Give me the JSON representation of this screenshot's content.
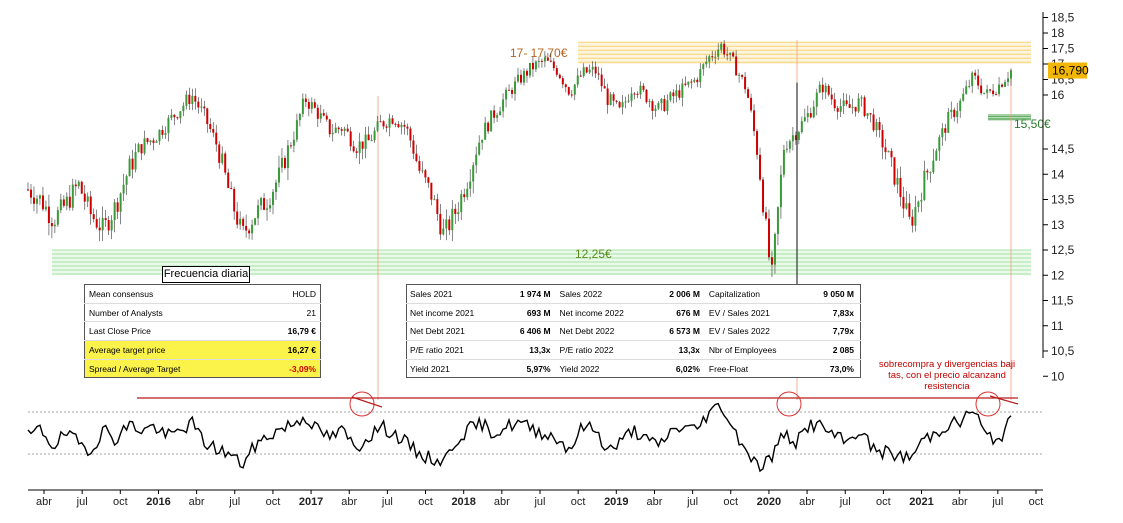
{
  "chart_data": {
    "type": "line",
    "price_axis": {
      "ticks": [
        10,
        10.5,
        11,
        11.5,
        12,
        12.5,
        13,
        13.5,
        14,
        14.5,
        16,
        16.5,
        17,
        17.5,
        18,
        18.5
      ]
    },
    "x_axis_labels": [
      {
        "t": "abr",
        "year": false
      },
      {
        "t": "jul",
        "year": false
      },
      {
        "t": "oct",
        "year": false
      },
      {
        "t": "2016",
        "year": true
      },
      {
        "t": "abr",
        "year": false
      },
      {
        "t": "jul",
        "year": false
      },
      {
        "t": "oct",
        "year": false
      },
      {
        "t": "2017",
        "year": true
      },
      {
        "t": "abr",
        "year": false
      },
      {
        "t": "jul",
        "year": false
      },
      {
        "t": "oct",
        "year": false
      },
      {
        "t": "2018",
        "year": true
      },
      {
        "t": "abr",
        "year": false
      },
      {
        "t": "jul",
        "year": false
      },
      {
        "t": "oct",
        "year": false
      },
      {
        "t": "2019",
        "year": true
      },
      {
        "t": "abr",
        "year": false
      },
      {
        "t": "jul",
        "year": false
      },
      {
        "t": "oct",
        "year": false
      },
      {
        "t": "2020",
        "year": true
      },
      {
        "t": "abr",
        "year": false
      },
      {
        "t": "jul",
        "year": false
      },
      {
        "t": "oct",
        "year": false
      },
      {
        "t": "2021",
        "year": true
      },
      {
        "t": "abr",
        "year": false
      },
      {
        "t": "jul",
        "year": false
      },
      {
        "t": "oct",
        "year": false
      }
    ],
    "price_series_monthly": [
      13.7,
      13.5,
      13.1,
      13.4,
      13.8,
      13.2,
      12.9,
      13.4,
      14.1,
      14.6,
      14.8,
      15.2,
      15.6,
      16.0,
      15.4,
      14.6,
      13.6,
      12.8,
      13.2,
      13.5,
      14.0,
      14.8,
      15.9,
      15.5,
      15.0,
      15.1,
      14.6,
      14.7,
      15.2,
      15.4,
      15.1,
      14.1,
      13.6,
      12.8,
      13.3,
      14.0,
      14.9,
      15.5,
      16.0,
      16.5,
      16.9,
      17.1,
      16.8,
      16.1,
      16.7,
      16.8,
      15.9,
      15.5,
      16.3,
      16.0,
      15.6,
      15.9,
      16.2,
      16.5,
      17.2,
      17.6,
      17.0,
      16.2,
      14.2,
      11.9,
      14.6,
      15.0,
      15.5,
      16.3,
      15.8,
      15.6,
      15.8,
      15.3,
      14.5,
      13.8,
      13.0,
      13.8,
      14.5,
      15.3,
      15.8,
      16.6,
      16.0,
      16.3,
      16.79
    ],
    "current_price": "16,790",
    "support_resistance": [
      {
        "label": "17- 17,70€",
        "low": 17.0,
        "high": 17.7,
        "color": "#f5c74c"
      },
      {
        "label": "12,25€",
        "low": 12.0,
        "high": 12.5,
        "color": "#8edb8e"
      },
      {
        "label": "15,50€",
        "value": 15.5,
        "color": "#3a9a3a"
      }
    ],
    "oscillator_series": [
      0.5,
      0.62,
      0.35,
      0.55,
      0.4,
      0.28,
      0.62,
      0.45,
      0.7,
      0.6,
      0.66,
      0.5,
      0.58,
      0.72,
      0.4,
      0.3,
      0.22,
      0.05,
      0.35,
      0.5,
      0.62,
      0.7,
      0.82,
      0.6,
      0.48,
      0.6,
      0.3,
      0.5,
      0.66,
      0.55,
      0.4,
      0.22,
      0.15,
      0.1,
      0.45,
      0.62,
      0.7,
      0.55,
      0.66,
      0.72,
      0.62,
      0.55,
      0.46,
      0.3,
      0.66,
      0.62,
      0.28,
      0.4,
      0.62,
      0.45,
      0.35,
      0.58,
      0.66,
      0.6,
      0.88,
      1.0,
      0.6,
      0.3,
      0.0,
      0.18,
      0.55,
      0.4,
      0.7,
      0.66,
      0.5,
      0.4,
      0.62,
      0.3,
      0.25,
      0.2,
      0.15,
      0.45,
      0.55,
      0.7,
      0.72,
      0.95,
      0.5,
      0.45,
      0.75
    ],
    "oscillator_annotation": "sobrecompra y divergencias bajistas, con el precio alcanzando resistencia",
    "colors": {
      "up": "#3a9a3a",
      "down": "#d00000",
      "guide": "#f2a07a",
      "oscillator": "#000000",
      "resistance_line": "#b81c1c"
    }
  },
  "frecuencia_label": "Frecuencia diaria",
  "consensus_table": [
    {
      "label": "Mean consensus",
      "value": "HOLD",
      "highlight": false,
      "style": ""
    },
    {
      "label": "Number of Analysts",
      "value": "21",
      "highlight": false,
      "style": ""
    },
    {
      "label": "Last Close Price",
      "value": "16,79 €",
      "highlight": false,
      "style": "b"
    },
    {
      "label": "Average target price",
      "value": "16,27 €",
      "highlight": true,
      "style": "b"
    },
    {
      "label": "Spread / Average Target",
      "value": "-3,09%",
      "highlight": true,
      "style": "red"
    }
  ],
  "financials_table": [
    [
      "Sales 2021",
      "1 974 M",
      "Sales 2022",
      "2 006 M",
      "Capitalization",
      "9 050 M"
    ],
    [
      "Net income 2021",
      "693 M",
      "Net income 2022",
      "676 M",
      "EV / Sales 2021",
      "7,83x"
    ],
    [
      "Net Debt 2021",
      "6 406 M",
      "Net Debt 2022",
      "6 573 M",
      "EV / Sales 2022",
      "7,79x"
    ],
    [
      "P/E ratio 2021",
      "13,3x",
      "P/E ratio 2022",
      "13,3x",
      "Nbr of Employees",
      "2 085"
    ],
    [
      "Yield 2021",
      "5,97%",
      "Yield 2022",
      "6,02%",
      "Free-Float",
      "73,0%"
    ]
  ]
}
